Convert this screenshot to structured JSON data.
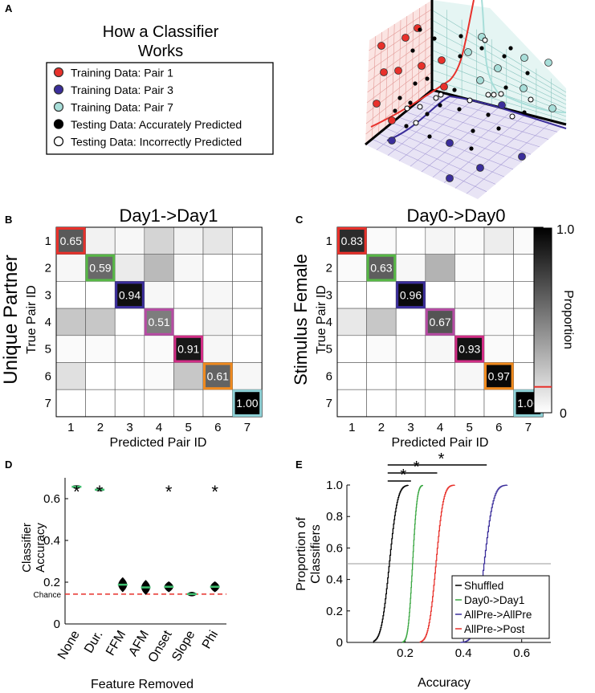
{
  "panels": {
    "A": "A",
    "B": "B",
    "C": "C",
    "D": "D",
    "E": "E"
  },
  "schematic": {
    "title_line1": "How a Classifier",
    "title_line2": "Works",
    "legend": [
      {
        "label": "Training Data: Pair 1",
        "color": "#e8312b",
        "stroke": "#333"
      },
      {
        "label": "Training Data: Pair 3",
        "color": "#3b2e9b",
        "stroke": "#333"
      },
      {
        "label": "Training Data: Pair 7",
        "color": "#a8ded9",
        "stroke": "#333"
      },
      {
        "label": "Testing Data: Accurately Predicted",
        "color": "#000000",
        "stroke": "#000"
      },
      {
        "label": "Testing Data: Incorrectly Predicted",
        "color": "#ffffff",
        "stroke": "#000"
      }
    ],
    "colors": {
      "pair1": "#e8312b",
      "pair3": "#3b2e9b",
      "pair7": "#a8ded9",
      "left_face": "#fbe4e2",
      "right_face": "#e5f5f3",
      "bottom_face": "#e8e4f5"
    }
  },
  "chart_data": [
    {
      "type": "heatmap",
      "title": "Day1->Day1",
      "row_group_label": "Unique Partner",
      "xlabel": "Predicted Pair ID",
      "ylabel": "True Pair ID",
      "categories": [
        "1",
        "2",
        "3",
        "4",
        "5",
        "6",
        "7"
      ],
      "values": [
        [
          0.65,
          0.05,
          0.03,
          0.17,
          0.05,
          0.1,
          0.0
        ],
        [
          0.03,
          0.59,
          0.08,
          0.27,
          0.03,
          0.0,
          0.0
        ],
        [
          0.0,
          0.0,
          0.94,
          0.03,
          0.0,
          0.03,
          0.0
        ],
        [
          0.22,
          0.22,
          0.0,
          0.51,
          0.0,
          0.05,
          0.0
        ],
        [
          0.02,
          0.02,
          0.0,
          0.02,
          0.91,
          0.03,
          0.0
        ],
        [
          0.12,
          0.0,
          0.0,
          0.02,
          0.22,
          0.61,
          0.03
        ],
        [
          0.0,
          0.0,
          0.0,
          0.0,
          0.0,
          0.0,
          1.0
        ]
      ],
      "diagonal_labels": [
        "0.65",
        "0.59",
        "0.94",
        "0.51",
        "0.91",
        "0.61",
        "1.00"
      ],
      "diagonal_colors": [
        "#e8312b",
        "#57b846",
        "#3b2e9b",
        "#b64ca4",
        "#d12e86",
        "#f08a1e",
        "#8fd3d8"
      ]
    },
    {
      "type": "heatmap",
      "title": "Day0->Day0",
      "row_group_label": "Stimulus Female",
      "xlabel": "Predicted Pair ID",
      "ylabel": "True Pair ID",
      "categories": [
        "1",
        "2",
        "3",
        "4",
        "5",
        "6",
        "7"
      ],
      "values": [
        [
          0.83,
          0.02,
          0.0,
          0.04,
          0.02,
          0.07,
          0.02
        ],
        [
          0.02,
          0.63,
          0.03,
          0.3,
          0.02,
          0.0,
          0.0
        ],
        [
          0.0,
          0.0,
          0.96,
          0.0,
          0.02,
          0.02,
          0.0
        ],
        [
          0.09,
          0.22,
          0.0,
          0.67,
          0.0,
          0.02,
          0.0
        ],
        [
          0.0,
          0.02,
          0.0,
          0.03,
          0.93,
          0.02,
          0.0
        ],
        [
          0.0,
          0.0,
          0.0,
          0.0,
          0.03,
          0.97,
          0.0
        ],
        [
          0.0,
          0.0,
          0.0,
          0.0,
          0.0,
          0.0,
          1.0
        ]
      ],
      "diagonal_labels": [
        "0.83",
        "0.63",
        "0.96",
        "0.67",
        "0.93",
        "0.97",
        "1.00"
      ],
      "diagonal_colors": [
        "#e8312b",
        "#57b846",
        "#3b2e9b",
        "#b64ca4",
        "#d12e86",
        "#f08a1e",
        "#8fd3d8"
      ],
      "colorbar": {
        "label": "Proportion",
        "min_label": "0",
        "max_label": "1.0",
        "range": [
          0,
          1
        ],
        "chance_marker": 0.14,
        "chance_color": "#e8312b"
      }
    },
    {
      "type": "violin",
      "xlabel": "Feature Removed",
      "ylabel_line1": "Classifier",
      "ylabel_line2": "Accuracy",
      "categories": [
        "None",
        "Dur.",
        "FFM",
        "AFM",
        "Onset",
        "Slope",
        "Phi"
      ],
      "values": [
        0.657,
        0.643,
        0.188,
        0.175,
        0.178,
        0.143,
        0.178
      ],
      "spread": [
        0.006,
        0.006,
        0.035,
        0.035,
        0.025,
        0.01,
        0.025
      ],
      "significant": [
        true,
        true,
        false,
        false,
        true,
        false,
        true
      ],
      "star_label": "*",
      "chance_value": 0.143,
      "chance_label": "Chance",
      "yticks": [
        0,
        0.2,
        0.4,
        0.6
      ],
      "ytick_labels": [
        "0",
        "0.2",
        "0.4",
        "0.6"
      ],
      "ylim": [
        0,
        0.7
      ],
      "violin_color": "#000000",
      "median_color": "#3fbf6f",
      "chance_color": "#e8312b"
    },
    {
      "type": "line",
      "subtype": "cumulative",
      "xlabel": "Accuracy",
      "ylabel_line1": "Proportion of",
      "ylabel_line2": "Classifiers",
      "xlim": [
        0,
        0.7
      ],
      "ylim": [
        0,
        1.0
      ],
      "xticks": [
        0.2,
        0.4,
        0.6
      ],
      "xtick_labels": [
        "0.2",
        "0.4",
        "0.6"
      ],
      "yticks": [
        0,
        0.2,
        0.4,
        0.6,
        0.8,
        1.0
      ],
      "ytick_labels": [
        "0",
        "0.2",
        "0.4",
        "0.6",
        "0.8",
        "1.0"
      ],
      "reference_y": 0.5,
      "series": [
        {
          "name": "Shuffled",
          "color": "#000000",
          "mean": 0.145,
          "sd": 0.022,
          "min": 0.09,
          "max": 0.21
        },
        {
          "name": "Day0->Day1",
          "color": "#3aa742",
          "mean": 0.225,
          "sd": 0.012,
          "min": 0.19,
          "max": 0.26
        },
        {
          "name": "AllPre->AllPre",
          "color": "#3b2e9b",
          "mean": 0.47,
          "sd": 0.025,
          "min": 0.39,
          "max": 0.55
        },
        {
          "name": "AllPre->Post",
          "color": "#e8312b",
          "mean": 0.305,
          "sd": 0.02,
          "min": 0.25,
          "max": 0.37
        }
      ],
      "comparisons": [
        {
          "from": 0.14,
          "to": 0.22,
          "label": "*"
        },
        {
          "from": 0.14,
          "to": 0.31,
          "label": "*"
        },
        {
          "from": 0.14,
          "to": 0.48,
          "label": "*"
        }
      ]
    }
  ]
}
